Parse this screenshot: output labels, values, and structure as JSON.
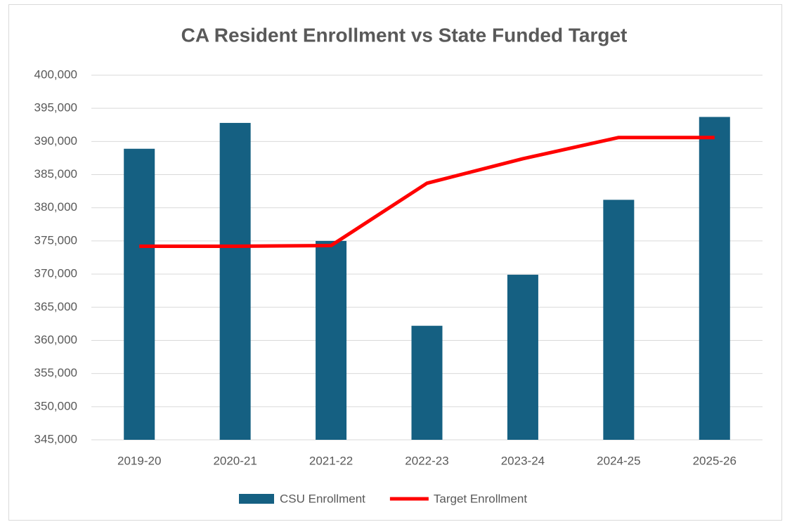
{
  "chart_data": {
    "type": "bar_line",
    "title": "CA Resident Enrollment vs State Funded Target",
    "categories": [
      "2019-20",
      "2020-21",
      "2021-22",
      "2022-23",
      "2023-24",
      "2024-25",
      "2025-26"
    ],
    "series": [
      {
        "name": "CSU Enrollment",
        "type": "bar",
        "color": "#156082",
        "values": [
          388900,
          392800,
          375000,
          362200,
          369900,
          381200,
          393700
        ]
      },
      {
        "name": "Target Enrollment",
        "type": "line",
        "color": "#ff0000",
        "values": [
          374200,
          374200,
          374300,
          383700,
          387400,
          390600,
          390600
        ]
      }
    ],
    "ylim": [
      345000,
      400000
    ],
    "yticks": [
      {
        "value": 345000,
        "label": "345,000"
      },
      {
        "value": 350000,
        "label": "350,000"
      },
      {
        "value": 355000,
        "label": "355,000"
      },
      {
        "value": 360000,
        "label": "360,000"
      },
      {
        "value": 365000,
        "label": "365,000"
      },
      {
        "value": 370000,
        "label": "370,000"
      },
      {
        "value": 375000,
        "label": "375,000"
      },
      {
        "value": 380000,
        "label": "380,000"
      },
      {
        "value": 385000,
        "label": "385,000"
      },
      {
        "value": 390000,
        "label": "390,000"
      },
      {
        "value": 395000,
        "label": "395,000"
      },
      {
        "value": 400000,
        "label": "400,000"
      }
    ],
    "grid": true,
    "legend": "bottom"
  }
}
